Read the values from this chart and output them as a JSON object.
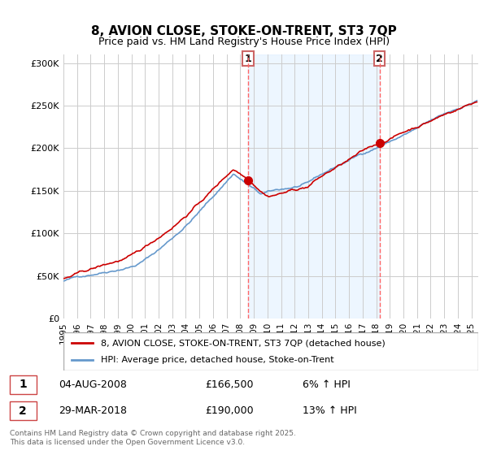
{
  "title": "8, AVION CLOSE, STOKE-ON-TRENT, ST3 7QP",
  "subtitle": "Price paid vs. HM Land Registry's House Price Index (HPI)",
  "ylabel_ticks": [
    "£0",
    "£50K",
    "£100K",
    "£150K",
    "£200K",
    "£250K",
    "£300K"
  ],
  "ytick_vals": [
    0,
    50000,
    100000,
    150000,
    200000,
    250000,
    300000
  ],
  "ylim": [
    0,
    310000
  ],
  "xlim_start": 1995.0,
  "xlim_end": 2025.5,
  "sale1_date": 2008.58,
  "sale1_price": 166500,
  "sale1_label": "1",
  "sale1_info": "04-AUG-2008",
  "sale1_pct": "6%",
  "sale2_date": 2018.24,
  "sale2_price": 190000,
  "sale2_label": "2",
  "sale2_info": "29-MAR-2018",
  "sale2_pct": "13%",
  "hpi_color": "#6699cc",
  "price_color": "#cc0000",
  "vline_color": "#ff6666",
  "grid_color": "#cccccc",
  "bg_color": "#ddeeff",
  "legend1": "8, AVION CLOSE, STOKE-ON-TRENT, ST3 7QP (detached house)",
  "legend2": "HPI: Average price, detached house, Stoke-on-Trent",
  "footnote": "Contains HM Land Registry data © Crown copyright and database right 2025.\nThis data is licensed under the Open Government Licence v3.0."
}
